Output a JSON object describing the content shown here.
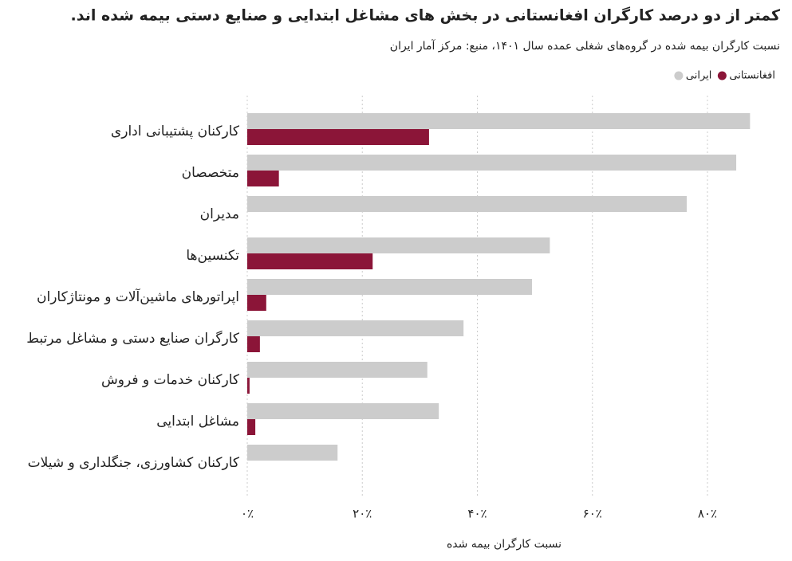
{
  "chart_data": {
    "type": "barh",
    "title": "کمتر از دو درصد کارگران افغانستانی در بخش های مشاغل ابتدایی و صنایع دستی بیمه شده اند.",
    "subtitle": "نسبت کارگران بیمه شده در گروه‌های شغلی عمده سال ۱۴۰۱، منبع: مرکز آمار ایران",
    "x_label": "نسبت کارگران بیمه شده",
    "categories": [
      "کارکنان پشتیبانی اداری",
      "متخصصان",
      "مدیران",
      "تکنسین‌ها",
      "اپراتورهای ماشین‌آلات و مونتاژکاران",
      "کارگران صنایع دستی و مشاغل مرتبط",
      "کارکنان خدمات و فروش",
      "مشاغل ابتدایی",
      "کارکنان کشاورزی، جنگلداری و شیلات"
    ],
    "series": [
      {
        "name": "ایرانی",
        "color": "#cccccc",
        "values": [
          87.4,
          85.0,
          76.4,
          52.6,
          49.5,
          37.6,
          31.3,
          33.3,
          15.7
        ]
      },
      {
        "name": "افغانستانی",
        "color": "#8b1538",
        "values": [
          31.6,
          5.5,
          0,
          21.8,
          3.3,
          2.2,
          0.4,
          1.4,
          0
        ]
      }
    ],
    "xlim": [
      0,
      88
    ],
    "xticks": [
      {
        "value": 0,
        "label": "۰٪"
      },
      {
        "value": 20,
        "label": "۲۰٪"
      },
      {
        "value": 40,
        "label": "۴۰٪"
      },
      {
        "value": 60,
        "label": "۶۰٪"
      },
      {
        "value": 80,
        "label": "۸۰٪"
      }
    ],
    "grid": true,
    "legend": "top-right"
  }
}
